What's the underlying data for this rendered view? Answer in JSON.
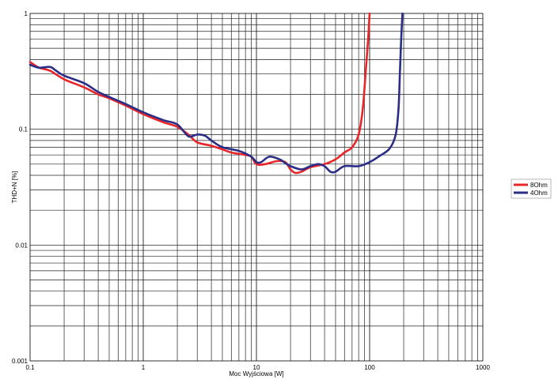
{
  "chart_data": {
    "type": "line",
    "title": "",
    "xlabel": "Moc Wyjściowa [W]",
    "ylabel": "THD+N [%]",
    "x_scale": "log",
    "y_scale": "log",
    "xlim": [
      0.1,
      1000
    ],
    "ylim": [
      0.001,
      1
    ],
    "x_ticks": [
      "0.1",
      "1",
      "10",
      "100",
      "1000"
    ],
    "y_ticks": [
      "0.001",
      "0.01",
      "0.1",
      "1"
    ],
    "grid": true,
    "legend_position": "right",
    "series": [
      {
        "name": "8Ohm",
        "color": "#e8262a",
        "points": [
          [
            0.1,
            0.38
          ],
          [
            0.12,
            0.34
          ],
          [
            0.15,
            0.32
          ],
          [
            0.2,
            0.27
          ],
          [
            0.3,
            0.23
          ],
          [
            0.4,
            0.2
          ],
          [
            0.5,
            0.185
          ],
          [
            0.7,
            0.16
          ],
          [
            1.0,
            0.135
          ],
          [
            1.5,
            0.115
          ],
          [
            2.0,
            0.105
          ],
          [
            2.5,
            0.09
          ],
          [
            3.0,
            0.077
          ],
          [
            4.0,
            0.072
          ],
          [
            5.0,
            0.067
          ],
          [
            6.0,
            0.063
          ],
          [
            8.0,
            0.06
          ],
          [
            9.0,
            0.058
          ],
          [
            10.0,
            0.05
          ],
          [
            12.0,
            0.05
          ],
          [
            15.0,
            0.053
          ],
          [
            18.0,
            0.052
          ],
          [
            20.0,
            0.045
          ],
          [
            22.0,
            0.042
          ],
          [
            25.0,
            0.043
          ],
          [
            30.0,
            0.047
          ],
          [
            40.0,
            0.05
          ],
          [
            50.0,
            0.055
          ],
          [
            60.0,
            0.063
          ],
          [
            70.0,
            0.07
          ],
          [
            80.0,
            0.09
          ],
          [
            87.0,
            0.15
          ],
          [
            92.0,
            0.3
          ],
          [
            97.0,
            0.6
          ],
          [
            100.0,
            1.0
          ]
        ]
      },
      {
        "name": "4Ohm",
        "color": "#2a2e86",
        "points": [
          [
            0.1,
            0.36
          ],
          [
            0.12,
            0.34
          ],
          [
            0.15,
            0.345
          ],
          [
            0.17,
            0.32
          ],
          [
            0.2,
            0.29
          ],
          [
            0.3,
            0.25
          ],
          [
            0.4,
            0.21
          ],
          [
            0.5,
            0.19
          ],
          [
            0.7,
            0.165
          ],
          [
            1.0,
            0.14
          ],
          [
            1.5,
            0.12
          ],
          [
            2.0,
            0.11
          ],
          [
            2.5,
            0.087
          ],
          [
            3.0,
            0.09
          ],
          [
            3.5,
            0.088
          ],
          [
            4.0,
            0.08
          ],
          [
            5.0,
            0.07
          ],
          [
            7.0,
            0.065
          ],
          [
            9.0,
            0.058
          ],
          [
            10.0,
            0.052
          ],
          [
            11.0,
            0.052
          ],
          [
            13.0,
            0.058
          ],
          [
            16.0,
            0.055
          ],
          [
            18.0,
            0.051
          ],
          [
            20.0,
            0.048
          ],
          [
            25.0,
            0.045
          ],
          [
            30.0,
            0.048
          ],
          [
            35.0,
            0.05
          ],
          [
            40.0,
            0.048
          ],
          [
            45.0,
            0.043
          ],
          [
            50.0,
            0.043
          ],
          [
            60.0,
            0.048
          ],
          [
            80.0,
            0.048
          ],
          [
            100.0,
            0.052
          ],
          [
            120.0,
            0.058
          ],
          [
            150.0,
            0.068
          ],
          [
            170.0,
            0.09
          ],
          [
            180.0,
            0.15
          ],
          [
            185.0,
            0.3
          ],
          [
            190.0,
            0.6
          ],
          [
            195.0,
            1.0
          ]
        ]
      }
    ]
  }
}
